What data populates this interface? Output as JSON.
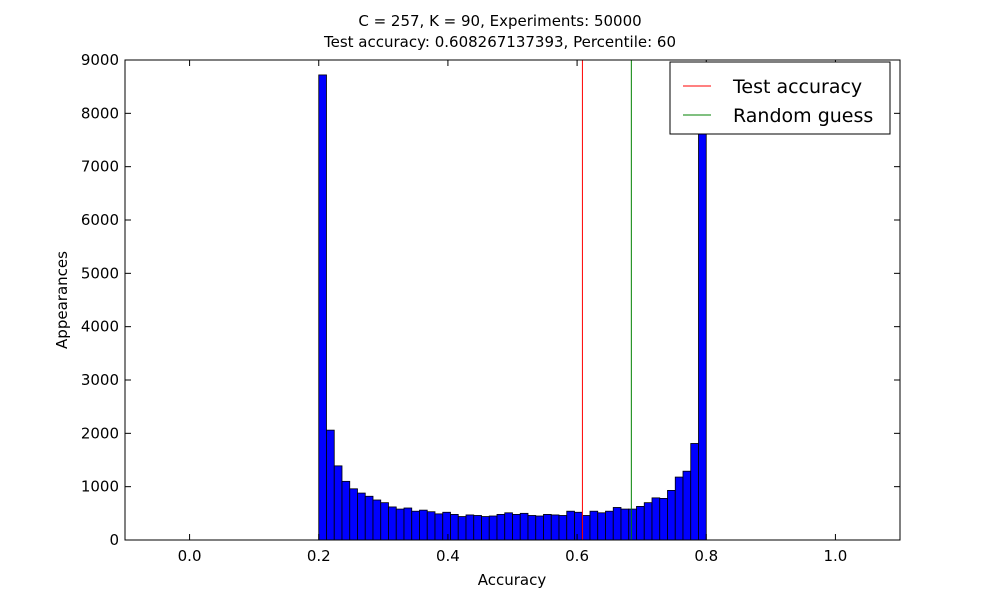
{
  "chart_data": {
    "type": "histogram",
    "title_lines": [
      "C = 257, K = 90, Experiments: 50000",
      "Test accuracy: 0.608267137393, Percentile: 60"
    ],
    "xlabel": "Accuracy",
    "ylabel": "Appearances",
    "xlim": [
      -0.1,
      1.1
    ],
    "ylim": [
      0,
      9000
    ],
    "xticks": [
      0.0,
      0.2,
      0.4,
      0.6,
      0.8,
      1.0
    ],
    "xtick_labels": [
      "0.0",
      "0.2",
      "0.4",
      "0.6",
      "0.8",
      "1.0"
    ],
    "yticks": [
      0,
      1000,
      2000,
      3000,
      4000,
      5000,
      6000,
      7000,
      8000,
      9000
    ],
    "ytick_labels": [
      "0",
      "1000",
      "2000",
      "3000",
      "4000",
      "5000",
      "6000",
      "7000",
      "8000",
      "9000"
    ],
    "bin_start": 0.2,
    "bin_end": 0.8,
    "values": [
      8720,
      2060,
      1390,
      1100,
      960,
      880,
      820,
      750,
      700,
      620,
      580,
      600,
      540,
      560,
      530,
      490,
      520,
      480,
      440,
      470,
      460,
      440,
      450,
      480,
      510,
      480,
      500,
      460,
      450,
      480,
      470,
      460,
      540,
      520,
      460,
      540,
      510,
      540,
      610,
      580,
      580,
      630,
      700,
      790,
      780,
      930,
      1180,
      1290,
      1810,
      7720
    ],
    "bar_color": "#0000ff",
    "lines": [
      {
        "name": "Test accuracy",
        "x": 0.608267137393,
        "color": "#ff0000"
      },
      {
        "name": "Random guess",
        "x": 0.684,
        "color": "#008000"
      }
    ],
    "legend_position": "top-right"
  }
}
